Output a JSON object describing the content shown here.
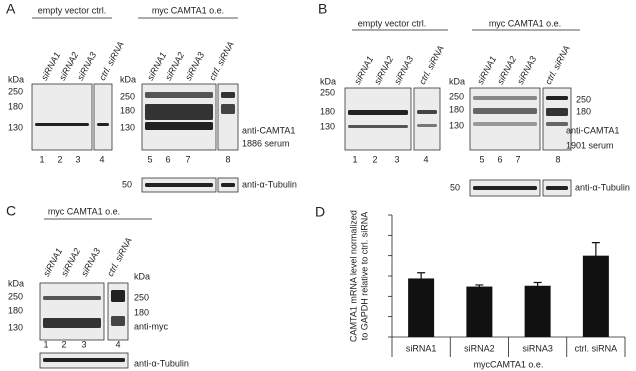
{
  "panels": {
    "A": {
      "letter": "A",
      "left_header": "empty vector ctrl.",
      "right_header": "myc CAMTA1 o.e.",
      "lanes": [
        "siRNA1",
        "siRNA2",
        "siRNA3",
        "ctrl. siRNA",
        "siRNA1",
        "siRNA2",
        "siRNA3",
        "ctrl. siRNA"
      ],
      "lane_numbers": [
        1,
        2,
        3,
        4,
        5,
        6,
        7,
        8
      ],
      "kda_left": {
        "unit": "kDa",
        "marks": [
          250,
          180,
          130
        ]
      },
      "kda_mid": {
        "unit": "kDa",
        "marks": [
          250,
          180,
          130
        ]
      },
      "antibody": "anti-CAMTA1",
      "serum": "1886 serum",
      "tubulin_kda": 50,
      "tubulin": "anti-α-Tubulin"
    },
    "B": {
      "letter": "B",
      "left_header": "empty vector ctrl.",
      "right_header": "myc CAMTA1 o.e.",
      "lanes": [
        "siRNA1",
        "siRNA2",
        "siRNA3",
        "ctrl. siRNA",
        "siRNA1",
        "siRNA2",
        "siRNA3",
        "ctrl. siRNA"
      ],
      "lane_numbers": [
        1,
        2,
        3,
        4,
        5,
        6,
        7,
        8
      ],
      "kda_left": {
        "unit": "kDa",
        "marks": [
          250,
          180,
          130
        ]
      },
      "kda_mid": {
        "unit": "kDa",
        "marks": [
          250,
          180,
          130
        ]
      },
      "kda_right": [
        250,
        180
      ],
      "antibody": "anti-CAMTA1",
      "serum": "1901 serum",
      "tubulin_kda": 50,
      "tubulin": "anti-α-Tubulin"
    },
    "C": {
      "letter": "C",
      "header": "myc CAMTA1 o.e.",
      "lanes": [
        "siRNA1",
        "siRNA2",
        "siRNA3",
        "ctrl. siRNA"
      ],
      "lane_numbers": [
        1,
        2,
        3,
        4
      ],
      "kda_left": {
        "unit": "kDa",
        "marks": [
          250,
          180,
          130
        ]
      },
      "kda_right": {
        "unit": "kDa",
        "marks": [
          250,
          180
        ]
      },
      "antibody": "anti-myc",
      "tubulin": "anti-α-Tubulin"
    }
  },
  "chart_data": {
    "type": "bar",
    "letter": "D",
    "ylabel": [
      "CAMTA1 mRNA level normalized",
      "to GAPDH relative to ctrl. siRNA"
    ],
    "categories": [
      "siRNA1",
      "siRNA2",
      "siRNA3",
      "ctrl. siRNA"
    ],
    "values": [
      0.72,
      0.62,
      0.63,
      1.0
    ],
    "errors": [
      0.07,
      0.02,
      0.04,
      0.16
    ],
    "xlabel": "mycCAMTA1 o.e.",
    "color": "#111111",
    "ylim": [
      0,
      1.5
    ],
    "yticks": [
      0,
      0.25,
      0.5,
      0.75,
      1.0,
      1.25,
      1.5
    ]
  }
}
